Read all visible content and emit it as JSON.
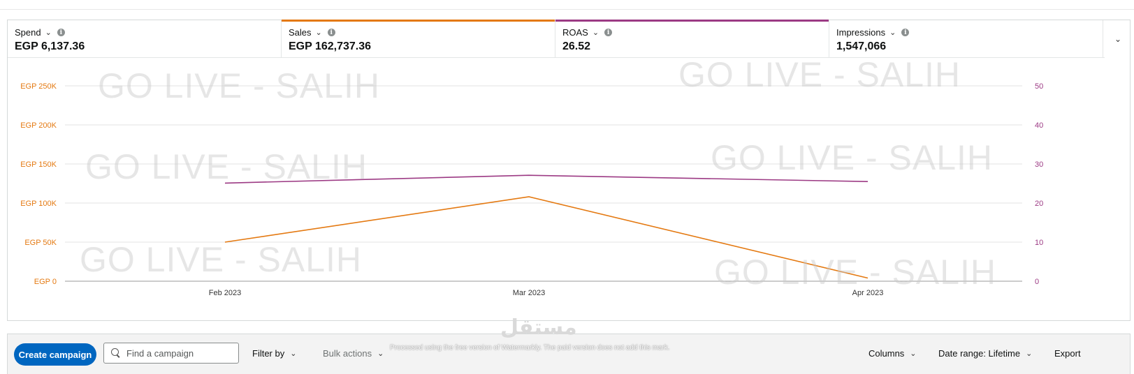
{
  "metrics": [
    {
      "label": "Spend",
      "value": "EGP 6,137.36",
      "color": ""
    },
    {
      "label": "Sales",
      "value": "EGP 162,737.36",
      "color": "#e47911"
    },
    {
      "label": "ROAS",
      "value": "26.52",
      "color": "#9c3a84"
    },
    {
      "label": "Impressions",
      "value": "1,547,066",
      "color": ""
    }
  ],
  "chart_data": {
    "type": "line",
    "categories": [
      "Feb 2023",
      "Mar 2023",
      "Apr 2023"
    ],
    "left_axis": {
      "ticks": [
        "EGP 0",
        "EGP 50K",
        "EGP 100K",
        "EGP 150K",
        "EGP 200K",
        "EGP 250K"
      ],
      "range": [
        0,
        250000
      ],
      "color": "#e47911"
    },
    "right_axis": {
      "ticks": [
        "0",
        "10",
        "20",
        "30",
        "40",
        "50"
      ],
      "range": [
        0,
        50
      ],
      "color": "#9c3a84"
    },
    "series": [
      {
        "name": "Sales",
        "axis": "left",
        "color": "#e47911",
        "values": [
          50000,
          108000,
          4000
        ]
      },
      {
        "name": "ROAS",
        "axis": "right",
        "color": "#9c3a84",
        "values": [
          25.1,
          27.1,
          25.5
        ]
      }
    ]
  },
  "watermarks": [
    "GO LIVE - SALIH",
    "GO LIVE - SALIH",
    "GO LIVE - SALIH",
    "GO LIVE - SALIH",
    "GO LIVE - SALIH",
    "GO LIVE - SALIH"
  ],
  "toolbar": {
    "create_label": "Create campaign",
    "search_placeholder": "Find a campaign",
    "filter_label": "Filter by",
    "bulk_label": "Bulk actions",
    "columns_label": "Columns",
    "date_range_label": "Date range: Lifetime",
    "export_label": "Export"
  },
  "overlay": {
    "logo_text": "مستقل",
    "note": "Processed using the free version of Watermarkly. The paid version does not add this mark."
  }
}
